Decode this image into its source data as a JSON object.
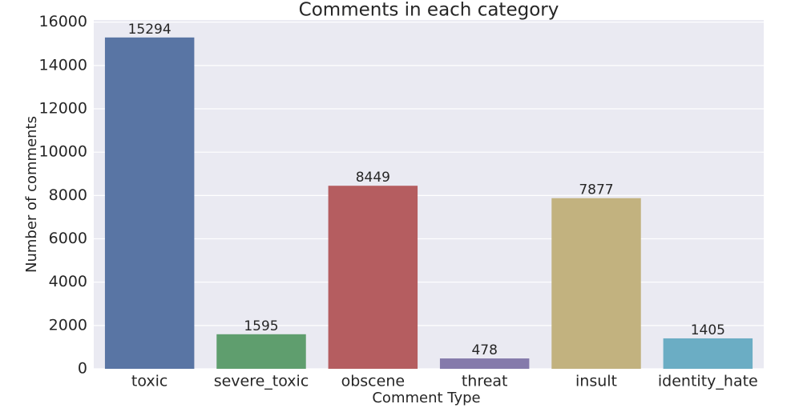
{
  "chart_data": {
    "type": "bar",
    "title": "Comments in each category",
    "x_label": "Comment Type",
    "y_label": "Number of comments",
    "categories": [
      "toxic",
      "severe_toxic",
      "obscene",
      "threat",
      "insult",
      "identity_hate"
    ],
    "values": [
      15294,
      1595,
      8449,
      478,
      7877,
      1405
    ],
    "colors": [
      "#5975a4",
      "#5f9e6e",
      "#b55d60",
      "#857aab",
      "#c2b27f",
      "#6badc4"
    ],
    "ylim": [
      0,
      16100
    ],
    "yticks": [
      0,
      2000,
      4000,
      6000,
      8000,
      10000,
      12000,
      14000,
      16000
    ],
    "grid": true
  }
}
